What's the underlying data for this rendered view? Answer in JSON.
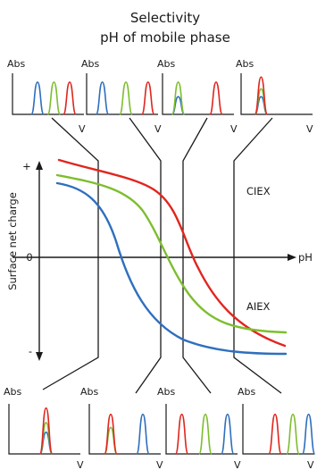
{
  "title_line1": "Selectivity",
  "title_line2": "pH of mobile phase",
  "y_axis_label": "Surface net charge",
  "x_axis_label": "pH",
  "plus_label": "+",
  "zero_label": "0",
  "minus_label": "-",
  "region_upper": "CIEX",
  "region_lower": "AIEX",
  "mini_y_label": "Abs",
  "mini_x_label": "V",
  "colors": {
    "blue": "#2f6fbe",
    "green": "#7dbe2e",
    "red": "#e0261f",
    "axis": "#1a1a1a"
  },
  "top_panels": [
    {
      "peaks": [
        {
          "color": "blue",
          "pos": 0.35,
          "h": 0.82
        },
        {
          "color": "green",
          "pos": 0.58,
          "h": 0.82
        },
        {
          "color": "red",
          "pos": 0.8,
          "h": 0.82
        }
      ]
    },
    {
      "peaks": [
        {
          "color": "blue",
          "pos": 0.22,
          "h": 0.82
        },
        {
          "color": "green",
          "pos": 0.55,
          "h": 0.82
        },
        {
          "color": "red",
          "pos": 0.86,
          "h": 0.82
        }
      ]
    },
    {
      "peaks": [
        {
          "color": "blue",
          "pos": 0.22,
          "h": 0.45
        },
        {
          "color": "green",
          "pos": 0.22,
          "h": 0.82
        },
        {
          "color": "red",
          "pos": 0.75,
          "h": 0.82
        }
      ]
    },
    {
      "peaks": [
        {
          "color": "blue",
          "pos": 0.28,
          "h": 0.45
        },
        {
          "color": "green",
          "pos": 0.28,
          "h": 0.65
        },
        {
          "color": "red",
          "pos": 0.28,
          "h": 0.95
        }
      ]
    }
  ],
  "bottom_panels": [
    {
      "peaks": [
        {
          "color": "blue",
          "pos": 0.52,
          "h": 0.45
        },
        {
          "color": "green",
          "pos": 0.52,
          "h": 0.65
        },
        {
          "color": "red",
          "pos": 0.52,
          "h": 0.95
        }
      ]
    },
    {
      "peaks": [
        {
          "color": "green",
          "pos": 0.3,
          "h": 0.55
        },
        {
          "color": "red",
          "pos": 0.3,
          "h": 0.82
        },
        {
          "color": "blue",
          "pos": 0.75,
          "h": 0.82
        }
      ]
    },
    {
      "peaks": [
        {
          "color": "red",
          "pos": 0.22,
          "h": 0.82
        },
        {
          "color": "green",
          "pos": 0.55,
          "h": 0.82
        },
        {
          "color": "blue",
          "pos": 0.86,
          "h": 0.82
        }
      ]
    },
    {
      "peaks": [
        {
          "color": "red",
          "pos": 0.45,
          "h": 0.82
        },
        {
          "color": "green",
          "pos": 0.7,
          "h": 0.82
        },
        {
          "color": "blue",
          "pos": 0.92,
          "h": 0.82
        }
      ]
    }
  ]
}
